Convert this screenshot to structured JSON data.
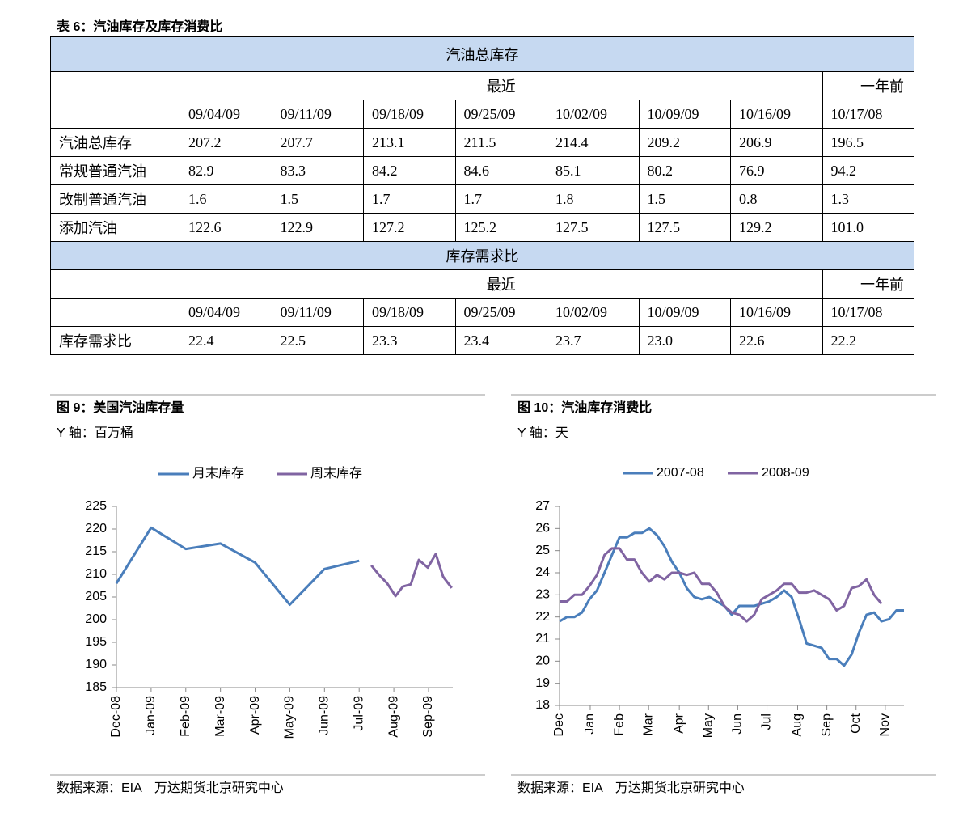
{
  "table": {
    "title": "表 6：汽油库存及库存消费比",
    "sections": [
      {
        "header": "汽油总库存",
        "recent_label": "最近",
        "year_ago_label": "一年前",
        "dates": [
          "09/04/09",
          "09/11/09",
          "09/18/09",
          "09/25/09",
          "10/02/09",
          "10/09/09",
          "10/16/09",
          "10/17/08"
        ],
        "rows": [
          {
            "label": "汽油总库存",
            "values": [
              "207.2",
              "207.7",
              "213.1",
              "211.5",
              "214.4",
              "209.2",
              "206.9",
              "196.5"
            ]
          },
          {
            "label": "常规普通汽油",
            "values": [
              "82.9",
              "83.3",
              "84.2",
              "84.6",
              "85.1",
              "80.2",
              "76.9",
              "94.2"
            ]
          },
          {
            "label": "改制普通汽油",
            "values": [
              "1.6",
              "1.5",
              "1.7",
              "1.7",
              "1.8",
              "1.5",
              "0.8",
              "1.3"
            ]
          },
          {
            "label": "添加汽油",
            "values": [
              "122.6",
              "122.9",
              "127.2",
              "125.2",
              "127.5",
              "127.5",
              "129.2",
              "101.0"
            ]
          }
        ]
      },
      {
        "header": "库存需求比",
        "recent_label": "最近",
        "year_ago_label": "一年前",
        "dates": [
          "09/04/09",
          "09/11/09",
          "09/18/09",
          "09/25/09",
          "10/02/09",
          "10/09/09",
          "10/16/09",
          "10/17/08"
        ],
        "rows": [
          {
            "label": "库存需求比",
            "values": [
              "22.4",
              "22.5",
              "23.3",
              "23.4",
              "23.7",
              "23.0",
              "22.6",
              "22.2"
            ]
          }
        ]
      }
    ]
  },
  "chart_data": [
    {
      "type": "line",
      "title": "图 9：美国汽油库存量",
      "subtitle": "Y 轴：百万桶",
      "source": "数据来源：EIA　万达期货北京研究中心",
      "xlim": [
        0,
        9.7
      ],
      "xticks": [
        {
          "value": 0,
          "label": "Dec-08"
        },
        {
          "value": 1,
          "label": "Jan-09"
        },
        {
          "value": 2,
          "label": "Feb-09"
        },
        {
          "value": 3,
          "label": "Mar-09"
        },
        {
          "value": 4,
          "label": "Apr-09"
        },
        {
          "value": 5,
          "label": "May-09"
        },
        {
          "value": 6,
          "label": "Jun-09"
        },
        {
          "value": 7,
          "label": "Jul-09"
        },
        {
          "value": 8,
          "label": "Aug-09"
        },
        {
          "value": 9,
          "label": "Sep-09"
        }
      ],
      "ylim": [
        185,
        225
      ],
      "yticks": [
        185,
        190,
        195,
        200,
        205,
        210,
        215,
        220,
        225
      ],
      "series": [
        {
          "name": "月末库存",
          "color": "#4a7ebb",
          "x": [
            0,
            1,
            2,
            3,
            4,
            5,
            6,
            7
          ],
          "values": [
            208.0,
            220.3,
            215.6,
            216.8,
            212.6,
            203.3,
            211.2,
            213.0
          ]
        },
        {
          "name": "周末库存",
          "color": "#8064a2",
          "x": [
            7.35,
            7.58,
            7.81,
            8.05,
            8.26,
            8.49,
            8.72,
            8.98,
            9.21,
            9.42,
            9.67
          ],
          "values": [
            212.0,
            209.8,
            208.0,
            205.2,
            207.3,
            207.8,
            213.2,
            211.5,
            214.5,
            209.5,
            207.0
          ]
        }
      ]
    },
    {
      "type": "line",
      "title": "图 10：汽油库存消费比",
      "subtitle": "Y 轴：天",
      "source": "数据来源：EIA　万达期货北京研究中心",
      "x": [
        0,
        1,
        2,
        3,
        4,
        5,
        6,
        7,
        8,
        9,
        10,
        11,
        12,
        13,
        14,
        15,
        16,
        17,
        18,
        19,
        20,
        21,
        22,
        23,
        24,
        25,
        26,
        27,
        28,
        29,
        30,
        31,
        32,
        33,
        34,
        35,
        36,
        37,
        38,
        39,
        40,
        41,
        42,
        43,
        44,
        45,
        46
      ],
      "xlim": [
        0,
        46
      ],
      "xticks": [
        {
          "value": 0,
          "label": "Dec"
        },
        {
          "value": 4.1,
          "label": "Jan"
        },
        {
          "value": 8,
          "label": "Feb"
        },
        {
          "value": 11.9,
          "label": "Mar"
        },
        {
          "value": 16,
          "label": "Apr"
        },
        {
          "value": 19.9,
          "label": "May"
        },
        {
          "value": 23.8,
          "label": "Jun"
        },
        {
          "value": 27.7,
          "label": "Jul"
        },
        {
          "value": 31.8,
          "label": "Aug"
        },
        {
          "value": 35.7,
          "label": "Sep"
        },
        {
          "value": 39.6,
          "label": "Oct"
        },
        {
          "value": 43.5,
          "label": "Nov"
        }
      ],
      "ylim": [
        18,
        27
      ],
      "yticks": [
        18,
        19,
        20,
        21,
        22,
        23,
        24,
        25,
        26,
        27
      ],
      "series": [
        {
          "name": "2007-08",
          "color": "#4a7ebb",
          "values": [
            21.8,
            22.0,
            22.0,
            22.2,
            22.8,
            23.2,
            24.0,
            24.8,
            25.6,
            25.6,
            25.8,
            25.8,
            26.0,
            25.7,
            25.2,
            24.5,
            24.0,
            23.3,
            22.9,
            22.8,
            22.9,
            22.7,
            22.5,
            22.1,
            22.5,
            22.5,
            22.5,
            22.6,
            22.7,
            22.9,
            23.2,
            22.9,
            21.9,
            20.8,
            20.7,
            20.6,
            20.1,
            20.1,
            19.8,
            20.3,
            21.3,
            22.1,
            22.2,
            21.8,
            21.9,
            22.3,
            22.3
          ]
        },
        {
          "name": "2008-09",
          "color": "#8064a2",
          "values": [
            22.7,
            22.7,
            23.0,
            23.0,
            23.4,
            23.9,
            24.8,
            25.1,
            25.1,
            24.6,
            24.6,
            24.0,
            23.6,
            23.9,
            23.7,
            24.0,
            24.0,
            23.9,
            24.0,
            23.5,
            23.5,
            23.1,
            22.5,
            22.2,
            22.1,
            21.8,
            22.1,
            22.8,
            23.0,
            23.2,
            23.5,
            23.5,
            23.1,
            23.1,
            23.2,
            23.0,
            22.8,
            22.3,
            22.5,
            23.3,
            23.4,
            23.7,
            23.0,
            22.6,
            null,
            null,
            null
          ]
        }
      ]
    }
  ]
}
